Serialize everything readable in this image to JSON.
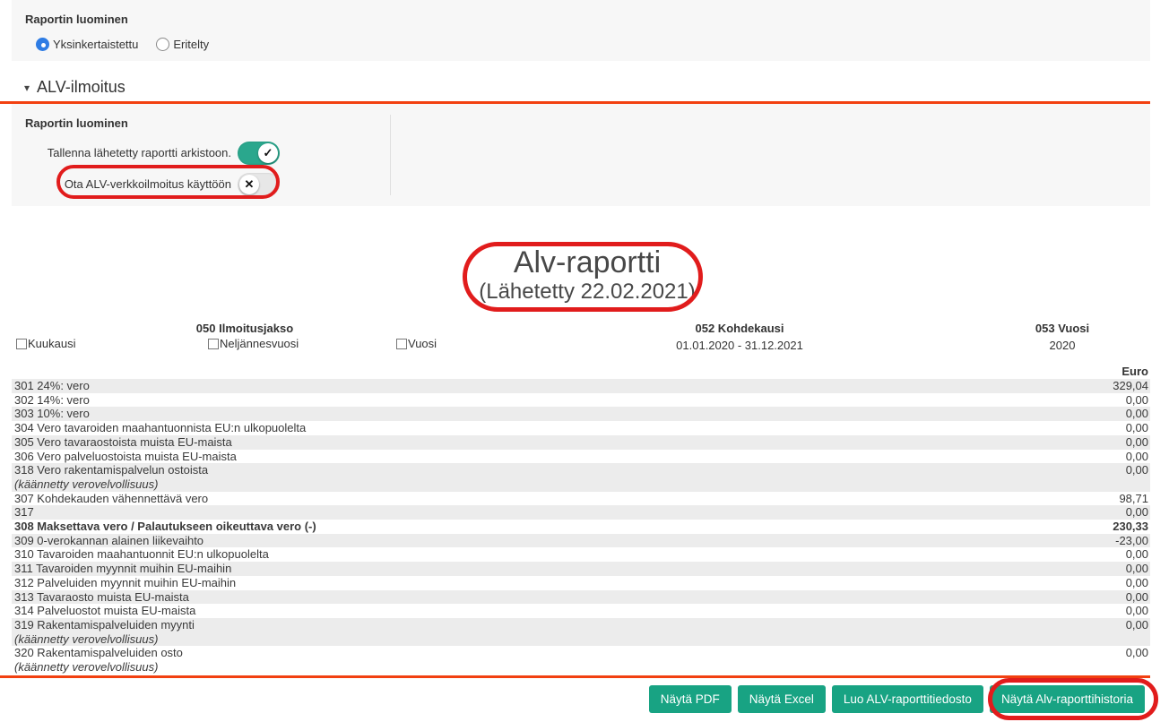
{
  "colors": {
    "accent_teal": "#18a383",
    "toggle_on_green": "#2aa78d",
    "orange_rule": "#f24010",
    "annotation_red": "#e11c1c",
    "radio_blue": "#2e7ce4",
    "row_shade": "#ececec"
  },
  "top_panel": {
    "title": "Raportin luominen",
    "radios": [
      {
        "label": "Yksinkertaistettu",
        "selected": true
      },
      {
        "label": "Eritelty",
        "selected": false
      }
    ]
  },
  "section": {
    "caret": "▾",
    "title": "ALV-ilmoitus"
  },
  "settings_panel": {
    "title": "Raportin luominen",
    "toggles": [
      {
        "label": "Tallenna lähetetty raportti arkistoon.",
        "on": true,
        "icon": "✓"
      },
      {
        "label": "Ota ALV-verkkoilmoitus käyttöön",
        "on": false,
        "icon": "✕"
      }
    ]
  },
  "report": {
    "title": "Alv-raportti",
    "subtitle": "(Lähetetty 22.02.2021)",
    "columns": {
      "period_header": "050 Ilmoitusjakso",
      "period_options": [
        {
          "label": "Kuukausi",
          "checked": false
        },
        {
          "label": "Neljännesvuosi",
          "checked": false
        },
        {
          "label": "Vuosi",
          "checked": false
        }
      ],
      "target_period_header": "052 Kohdekausi",
      "target_period_value": "01.01.2020 - 31.12.2021",
      "year_header": "053 Vuosi",
      "year_value": "2020",
      "currency_header": "Euro"
    },
    "rows": [
      {
        "label": "301 24%: vero",
        "value": "329,04"
      },
      {
        "label": "302 14%: vero",
        "value": "0,00"
      },
      {
        "label": "303 10%: vero",
        "value": "0,00"
      },
      {
        "label": "304 Vero tavaroiden maahantuonnista EU:n ulkopuolelta",
        "value": "0,00"
      },
      {
        "label": "305 Vero tavaraostoista muista EU-maista",
        "value": "0,00"
      },
      {
        "label": "306 Vero palveluostoista muista EU-maista",
        "value": "0,00"
      },
      {
        "label": "318 Vero rakentamispalvelun ostoista",
        "note": "(käännetty verovelvollisuus)",
        "value": "0,00"
      },
      {
        "label": "307 Kohdekauden vähennettävä vero",
        "value": "98,71"
      },
      {
        "label": "317",
        "value": "0,00"
      },
      {
        "label": "308 Maksettava vero / Palautukseen oikeuttava vero (-)",
        "value": "230,33",
        "bold": true
      },
      {
        "label": "309 0-verokannan alainen liikevaihto",
        "value": "-23,00"
      },
      {
        "label": "310 Tavaroiden maahantuonnit EU:n ulkopuolelta",
        "value": "0,00"
      },
      {
        "label": "311 Tavaroiden myynnit muihin EU-maihin",
        "value": "0,00"
      },
      {
        "label": "312 Palveluiden myynnit muihin EU-maihin",
        "value": "0,00"
      },
      {
        "label": "313 Tavaraosto muista EU-maista",
        "value": "0,00"
      },
      {
        "label": "314 Palveluostot muista EU-maista",
        "value": "0,00"
      },
      {
        "label": "319 Rakentamispalveluiden myynti",
        "note": "(käännetty verovelvollisuus)",
        "value": "0,00"
      },
      {
        "label": "320 Rakentamispalveluiden osto",
        "note": "(käännetty verovelvollisuus)",
        "value": "0,00"
      }
    ]
  },
  "footer": {
    "buttons": [
      "Näytä PDF",
      "Näytä Excel",
      "Luo ALV-raporttitiedosto",
      "Näytä Alv-raporttihistoria"
    ]
  }
}
